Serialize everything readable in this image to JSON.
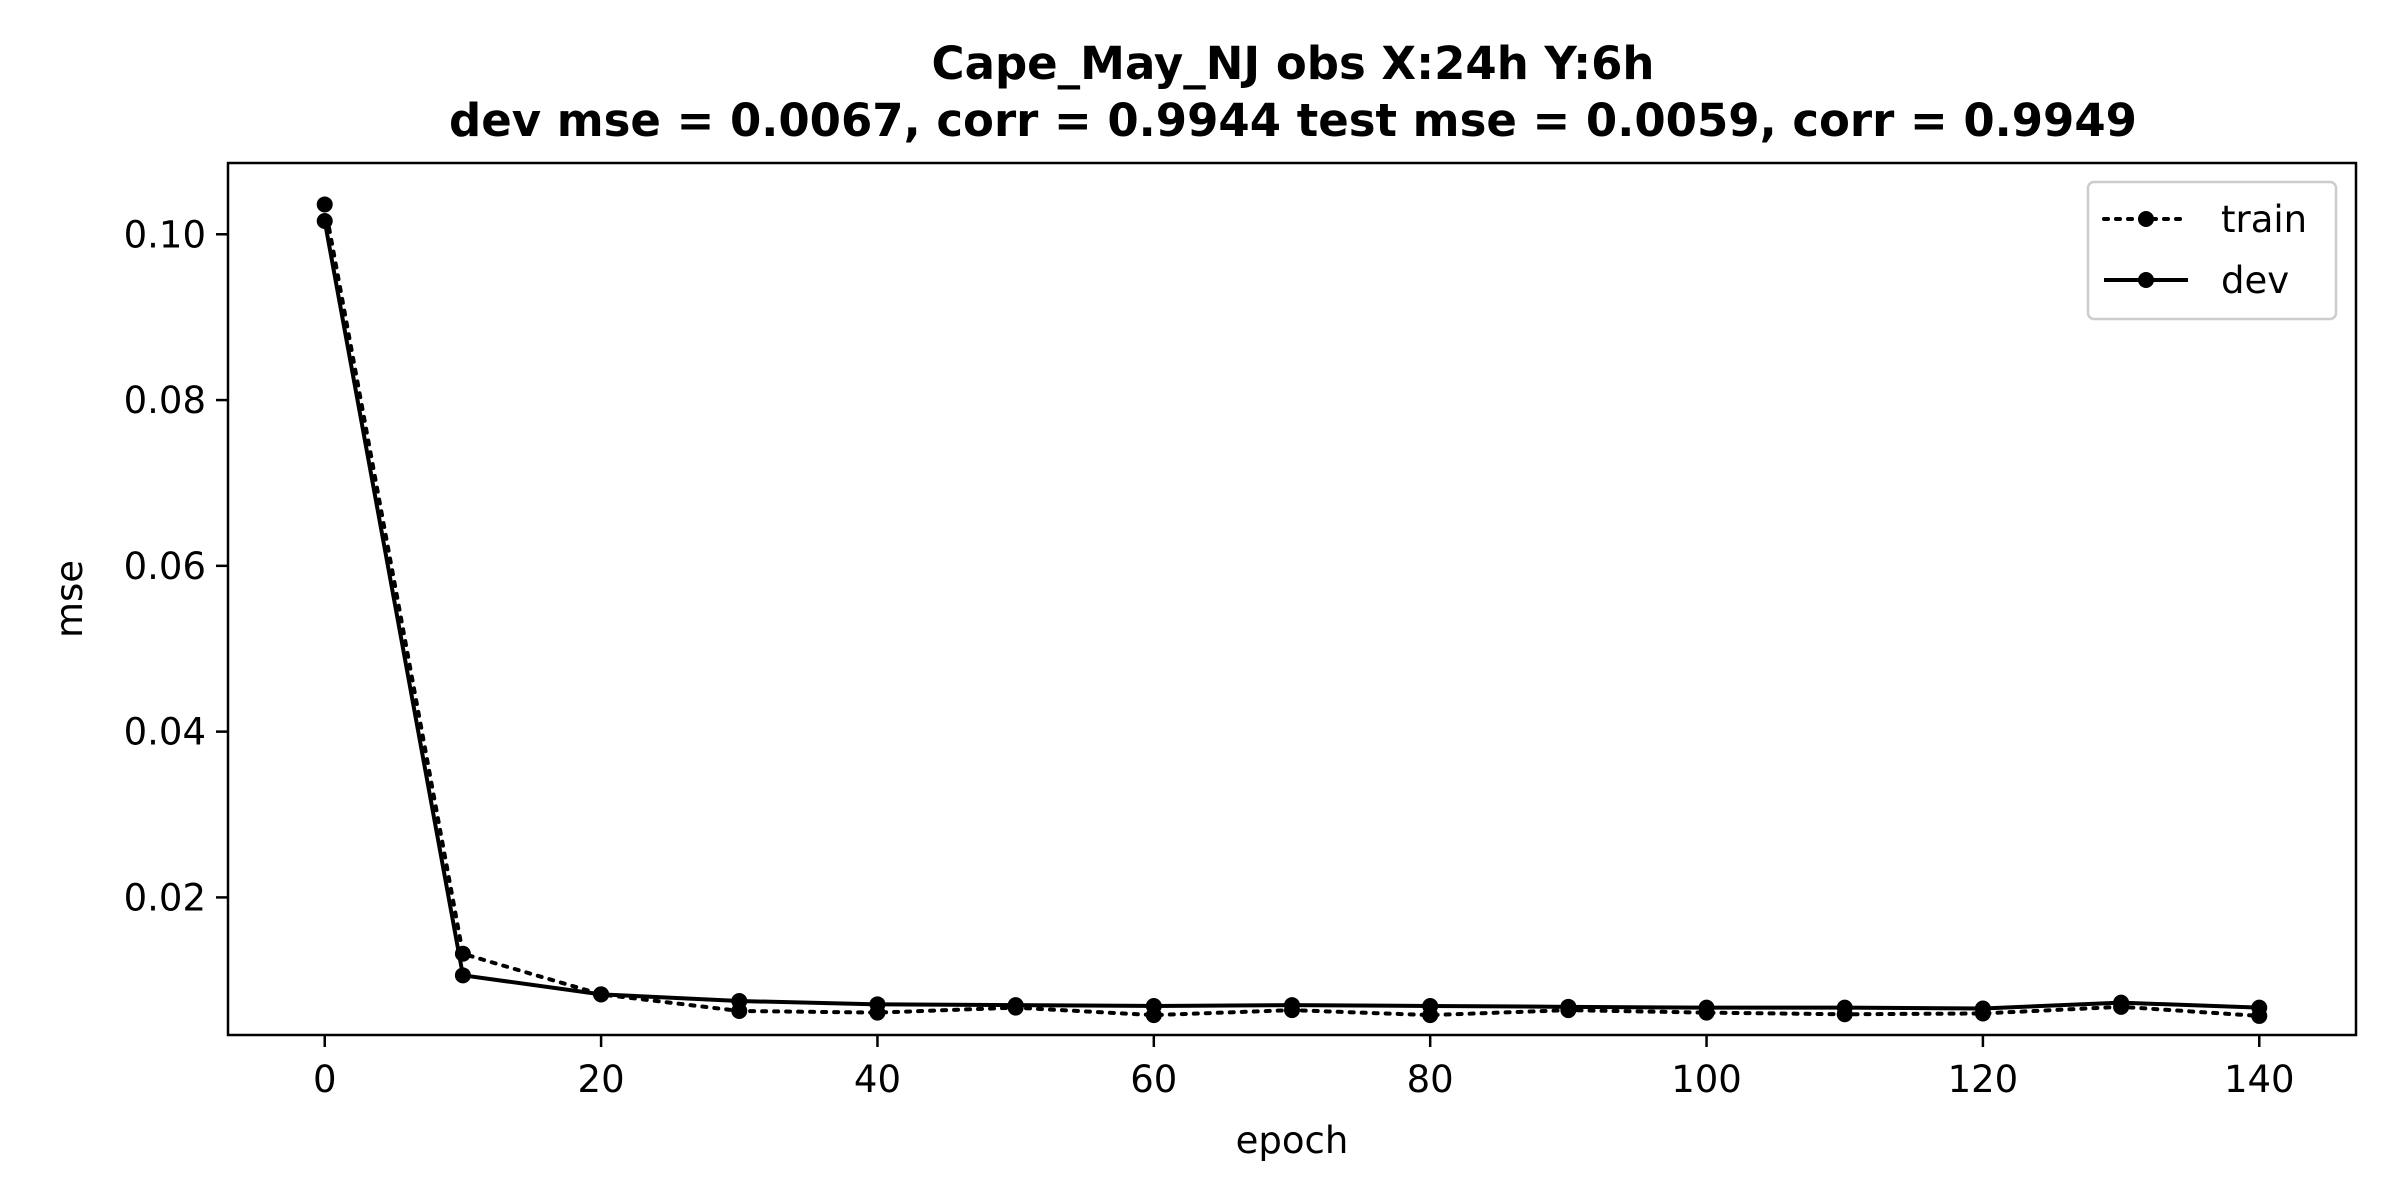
{
  "chart_data": {
    "type": "line",
    "title": "Cape_May_NJ   obs   X:24h   Y:6h",
    "subtitle": "dev mse = 0.0067, corr = 0.9944   test mse = 0.0059, corr = 0.9949",
    "xlabel": "epoch",
    "ylabel": "mse",
    "xlim": [
      -7,
      147
    ],
    "ylim": [
      0.0034,
      0.1086
    ],
    "xticks": [
      0,
      20,
      40,
      60,
      80,
      100,
      120,
      140
    ],
    "xtick_labels": [
      "0",
      "20",
      "40",
      "60",
      "80",
      "100",
      "120",
      "140"
    ],
    "yticks": [
      0.02,
      0.04,
      0.06,
      0.08,
      0.1
    ],
    "ytick_labels": [
      "0.02",
      "0.04",
      "0.06",
      "0.08",
      "0.10"
    ],
    "grid": false,
    "legend_position": "top-right",
    "x": [
      0,
      10,
      20,
      30,
      40,
      50,
      60,
      70,
      80,
      90,
      100,
      110,
      120,
      130,
      140
    ],
    "series": [
      {
        "name": "train",
        "style": "dotted",
        "color": "#000000",
        "values": [
          0.1036,
          0.0132,
          0.0083,
          0.0063,
          0.0061,
          0.0067,
          0.0058,
          0.0064,
          0.0058,
          0.0064,
          0.0061,
          0.0059,
          0.006,
          0.0068,
          0.0057
        ]
      },
      {
        "name": "dev",
        "style": "solid",
        "color": "#000000",
        "values": [
          0.1016,
          0.0106,
          0.0083,
          0.0075,
          0.0071,
          0.007,
          0.0069,
          0.007,
          0.0069,
          0.0068,
          0.0067,
          0.0067,
          0.0066,
          0.0073,
          0.0067
        ]
      }
    ]
  }
}
